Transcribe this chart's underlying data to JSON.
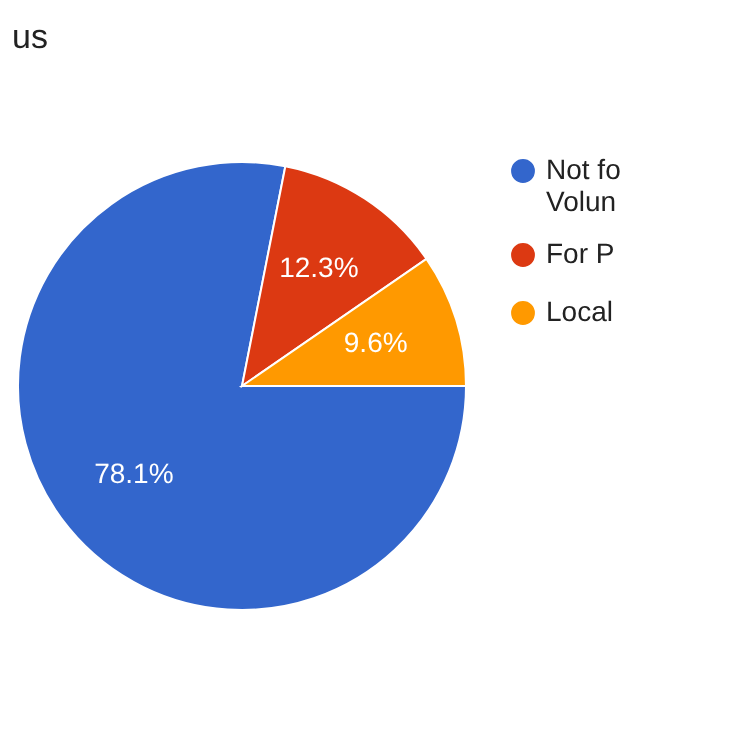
{
  "chart_data": {
    "type": "pie",
    "title": "us",
    "categories": [
      "Not fo\nVolun",
      "For P",
      "Local"
    ],
    "values": [
      78.1,
      12.3,
      9.6
    ],
    "colors": [
      "#3366cc",
      "#dc3912",
      "#ff9900"
    ],
    "value_labels": [
      "78.1%",
      "12.3%",
      "9.6%"
    ],
    "legend": "right"
  }
}
